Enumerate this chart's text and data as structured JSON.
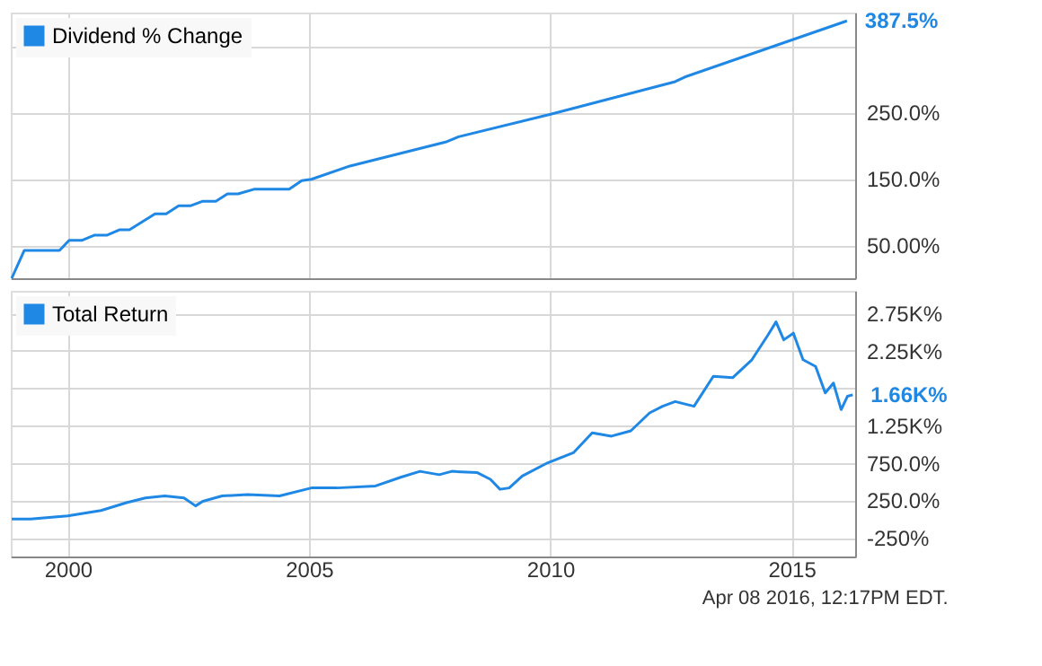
{
  "chart_data": [
    {
      "type": "line",
      "legend": "top left",
      "grid": true,
      "tick_labels": "y",
      "xlim": [
        1998.82,
        2016.32
      ],
      "xticks": [
        2000,
        2005,
        2010,
        2015
      ],
      "ylim": [
        0,
        400
      ],
      "yticks": [
        {
          "value": 50,
          "label": "50.00%"
        },
        {
          "value": 150,
          "label": "150.0%"
        },
        {
          "value": 250,
          "label": "250.0%"
        },
        {
          "value": 350,
          "label": null
        }
      ],
      "series": [
        {
          "name": "Dividend % Change",
          "color": "#1f88e5",
          "x": [
            1998.84,
            1999.1,
            1999.83,
            2000.03,
            2000.29,
            2000.56,
            2000.82,
            2001.08,
            2001.28,
            2001.81,
            2002.04,
            2002.3,
            2002.54,
            2002.8,
            2003.07,
            2003.31,
            2003.53,
            2003.86,
            2004.59,
            2004.85,
            2005.05,
            2005.85,
            2007.83,
            2008.1,
            2010.01,
            2012.59,
            2012.79,
            2016.15
          ],
          "values": [
            0,
            42,
            42,
            57,
            57,
            65,
            65,
            73,
            73,
            97,
            97,
            109,
            109,
            116,
            116,
            127,
            127,
            134,
            134,
            147,
            149,
            169,
            205,
            213,
            247,
            296,
            303,
            387.5
          ],
          "value_labels": [
            null,
            null,
            null,
            null,
            null,
            null,
            null,
            null,
            null,
            null,
            null,
            null,
            null,
            null,
            null,
            null,
            null,
            null,
            null,
            null,
            null,
            null,
            null,
            null,
            null,
            null,
            null,
            "387.5%"
          ]
        }
      ]
    },
    {
      "type": "line",
      "legend": "top left",
      "grid": true,
      "xlim": [
        1998.82,
        2016.32
      ],
      "xticks": [
        2000,
        2005,
        2010,
        2015
      ],
      "ylim": [
        -500,
        3050
      ],
      "yticks": [
        {
          "value": -250,
          "label": "-250%"
        },
        {
          "value": 250,
          "label": "250.0%"
        },
        {
          "value": 750,
          "label": "750.0%"
        },
        {
          "value": 1250,
          "label": "1.25K%"
        },
        {
          "value": 1750,
          "label": null
        },
        {
          "value": 2250,
          "label": "2.25K%"
        },
        {
          "value": 2750,
          "label": "2.75K%"
        }
      ],
      "annotations": [
        "Apr 08 2016, 12:17PM EDT."
      ],
      "series": [
        {
          "name": "Total Return",
          "color": "#1f88e5",
          "x": [
            1998.84,
            1999.23,
            2000.0,
            2000.69,
            2001.22,
            2001.61,
            2002.01,
            2002.41,
            2002.65,
            2002.8,
            2003.2,
            2003.73,
            2004.39,
            2005.05,
            2005.58,
            2006.38,
            2006.9,
            2007.3,
            2007.7,
            2007.96,
            2008.49,
            2008.76,
            2008.96,
            2009.15,
            2009.42,
            2009.95,
            2010.48,
            2010.87,
            2011.27,
            2011.67,
            2012.06,
            2012.33,
            2012.59,
            2012.98,
            2013.38,
            2013.78,
            2014.18,
            2014.51,
            2014.68,
            2014.84,
            2015.04,
            2015.24,
            2015.5,
            2015.7,
            2015.87,
            2016.03,
            2016.16,
            2016.27
          ],
          "values": [
            0,
            0,
            43,
            114,
            220,
            283,
            309,
            283,
            176,
            238,
            309,
            327,
            309,
            416,
            416,
            442,
            558,
            638,
            593,
            638,
            620,
            531,
            398,
            416,
            575,
            753,
            886,
            1152,
            1108,
            1179,
            1419,
            1507,
            1570,
            1507,
            1907,
            1889,
            2129,
            2457,
            2635,
            2395,
            2484,
            2129,
            2040,
            1685,
            1818,
            1463,
            1640,
            1660
          ],
          "value_labels": [
            null,
            null,
            null,
            null,
            null,
            null,
            null,
            null,
            null,
            null,
            null,
            null,
            null,
            null,
            null,
            null,
            null,
            null,
            null,
            null,
            null,
            null,
            null,
            null,
            null,
            null,
            null,
            null,
            null,
            null,
            null,
            null,
            null,
            null,
            null,
            null,
            null,
            null,
            null,
            null,
            null,
            null,
            null,
            null,
            null,
            null,
            null,
            "1.66K%"
          ]
        }
      ]
    }
  ]
}
